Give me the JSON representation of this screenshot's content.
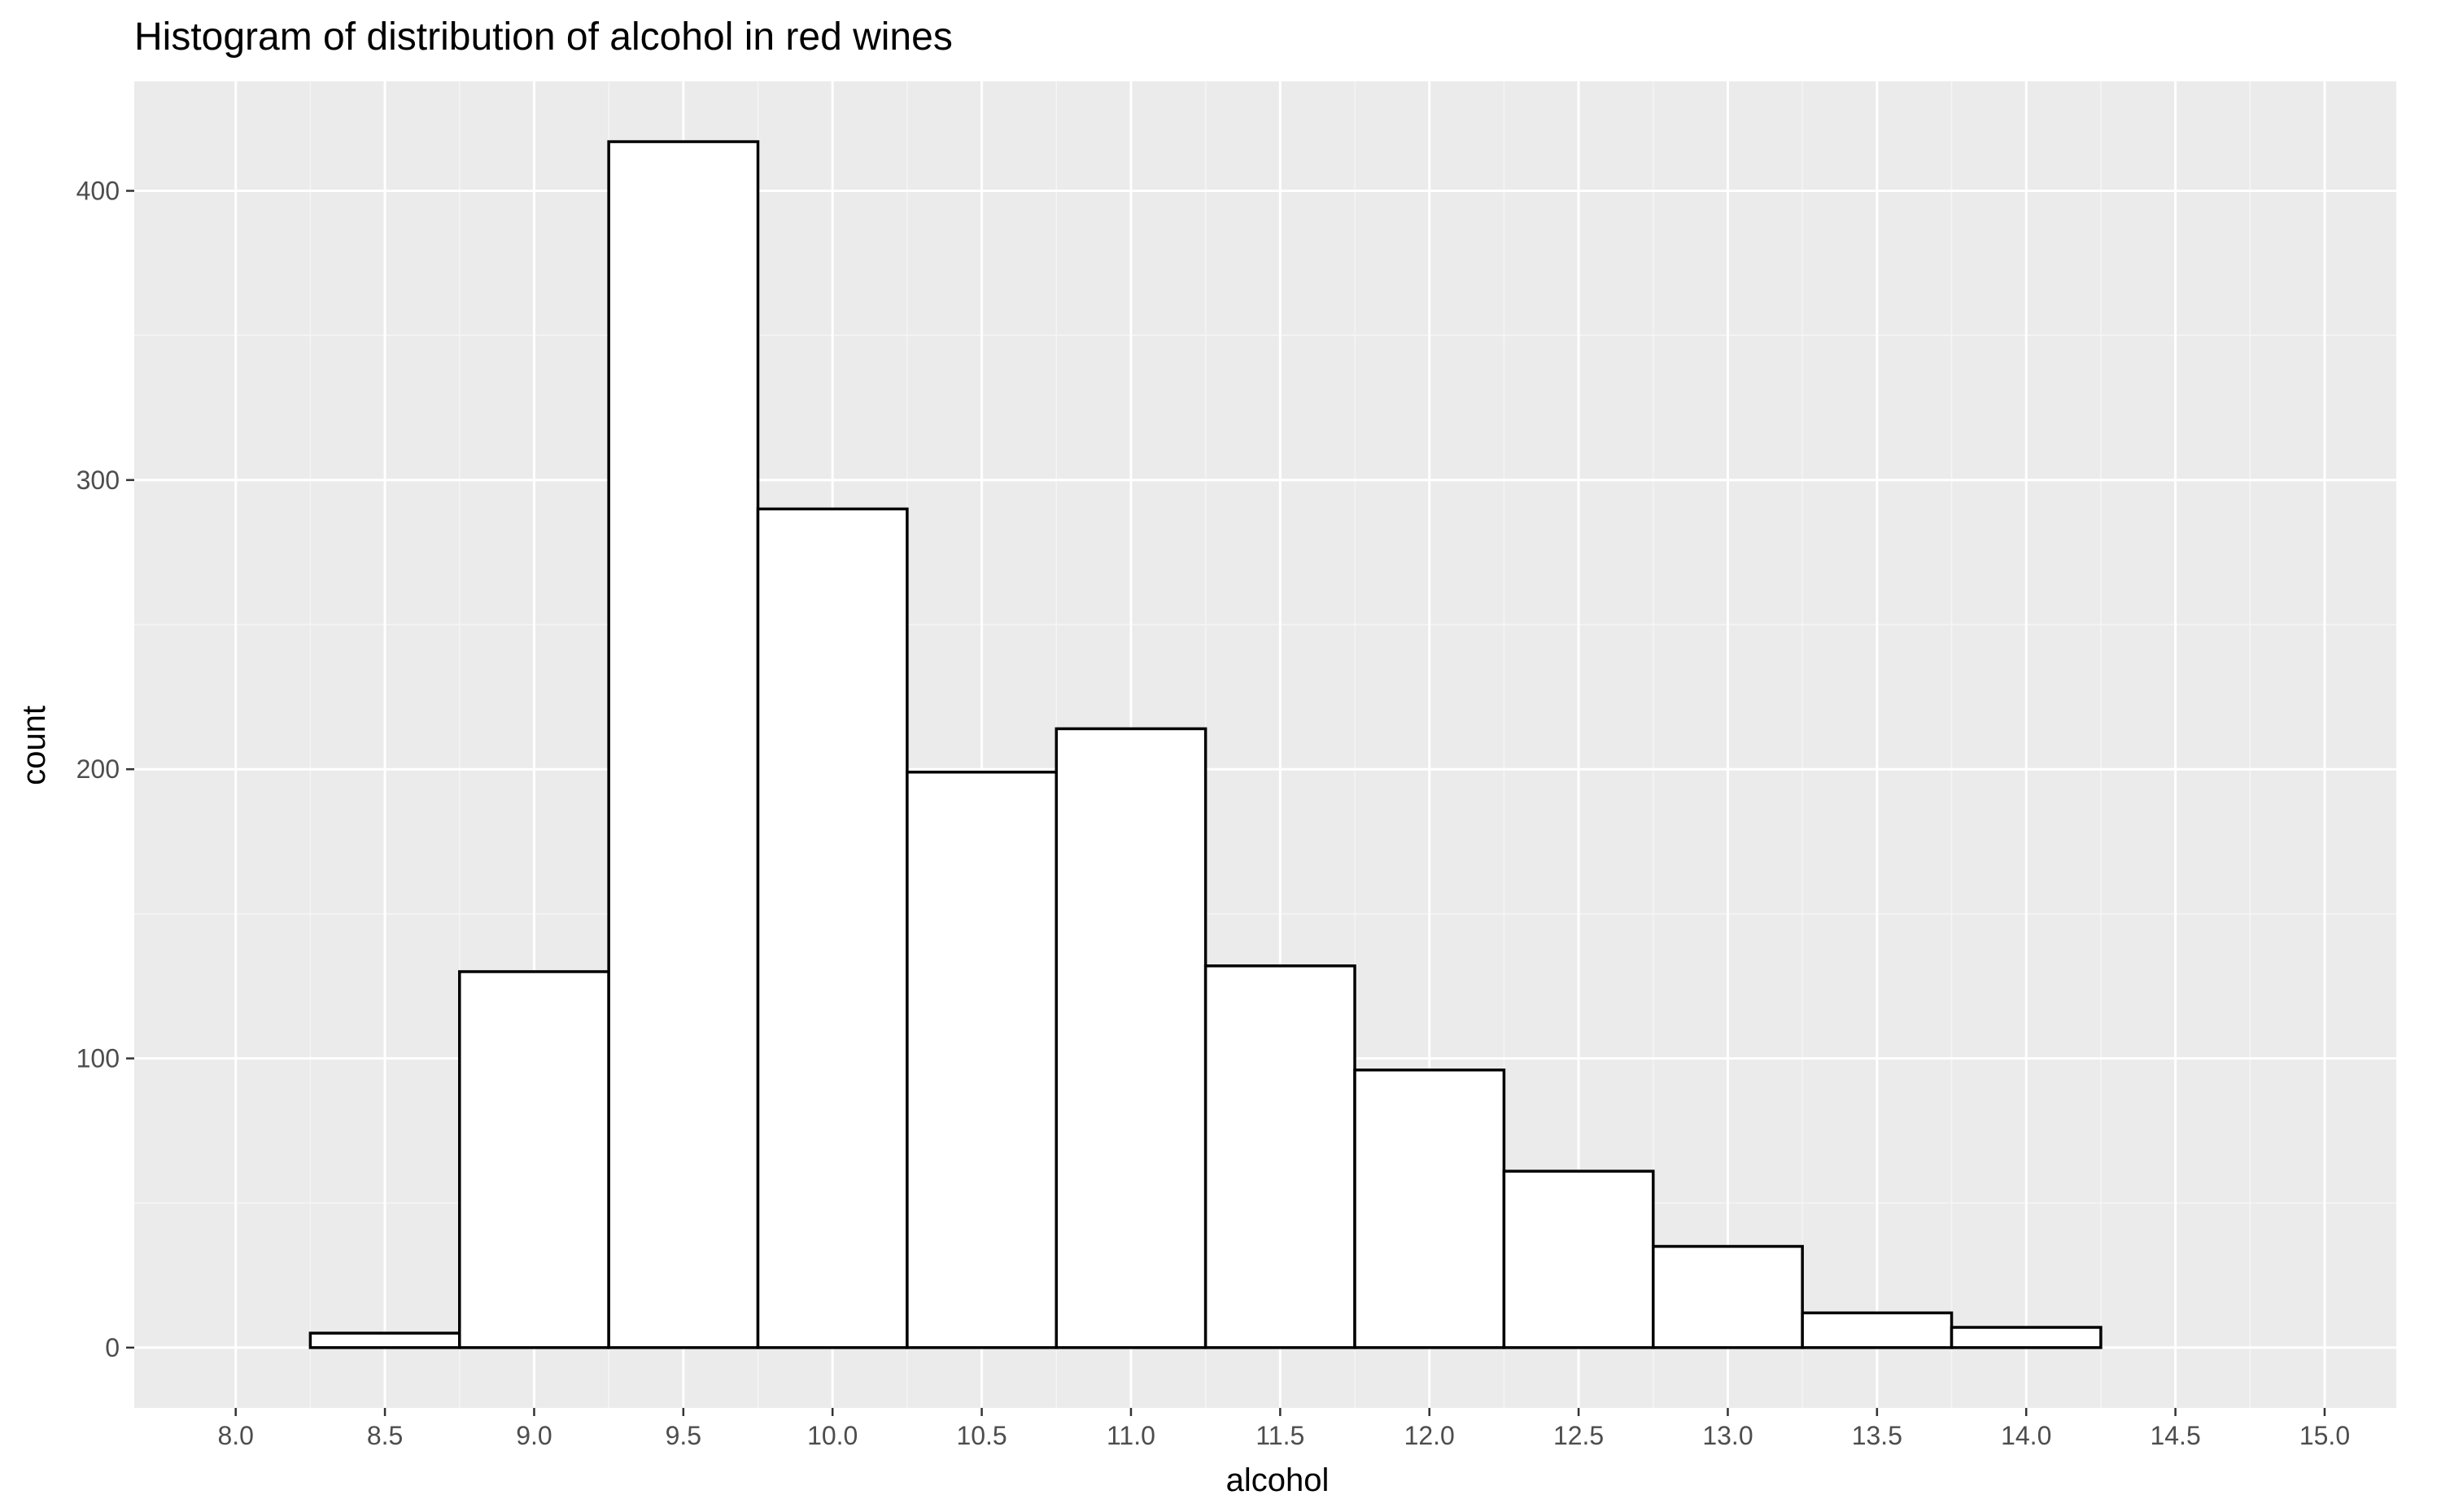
{
  "chart_data": {
    "type": "bar",
    "subtype": "histogram",
    "title": "Histogram of distribution of alcohol in red wines",
    "xlabel": "alcohol",
    "ylabel": "count",
    "bin_width": 0.5,
    "bins": [
      {
        "start": 8.25,
        "end": 8.75,
        "count": 5
      },
      {
        "start": 8.75,
        "end": 9.25,
        "count": 130
      },
      {
        "start": 9.25,
        "end": 9.75,
        "count": 417
      },
      {
        "start": 9.75,
        "end": 10.25,
        "count": 290
      },
      {
        "start": 10.25,
        "end": 10.75,
        "count": 199
      },
      {
        "start": 10.75,
        "end": 11.25,
        "count": 214
      },
      {
        "start": 11.25,
        "end": 11.75,
        "count": 132
      },
      {
        "start": 11.75,
        "end": 12.25,
        "count": 96
      },
      {
        "start": 12.25,
        "end": 12.75,
        "count": 61
      },
      {
        "start": 12.75,
        "end": 13.25,
        "count": 35
      },
      {
        "start": 13.25,
        "end": 13.75,
        "count": 12
      },
      {
        "start": 13.75,
        "end": 14.25,
        "count": 7
      },
      {
        "start": 14.25,
        "end": 14.75,
        "count": 0
      }
    ],
    "x_ticks": [
      "8.0",
      "8.5",
      "9.0",
      "9.5",
      "10.0",
      "10.5",
      "11.0",
      "11.5",
      "12.0",
      "12.5",
      "13.0",
      "13.5",
      "14.0",
      "14.5",
      "15.0"
    ],
    "y_ticks": [
      "0",
      "100",
      "200",
      "300",
      "400"
    ],
    "xlim": [
      7.66,
      15.24
    ],
    "ylim": [
      -20.85,
      437.85
    ],
    "grid": true,
    "colors": {
      "panel_background": "#ebebeb",
      "grid_major": "#ffffff",
      "grid_minor": "#f5f5f5",
      "bar_fill": "#ffffff",
      "bar_outline": "#000000",
      "tick_label": "#4d4d4d"
    }
  }
}
